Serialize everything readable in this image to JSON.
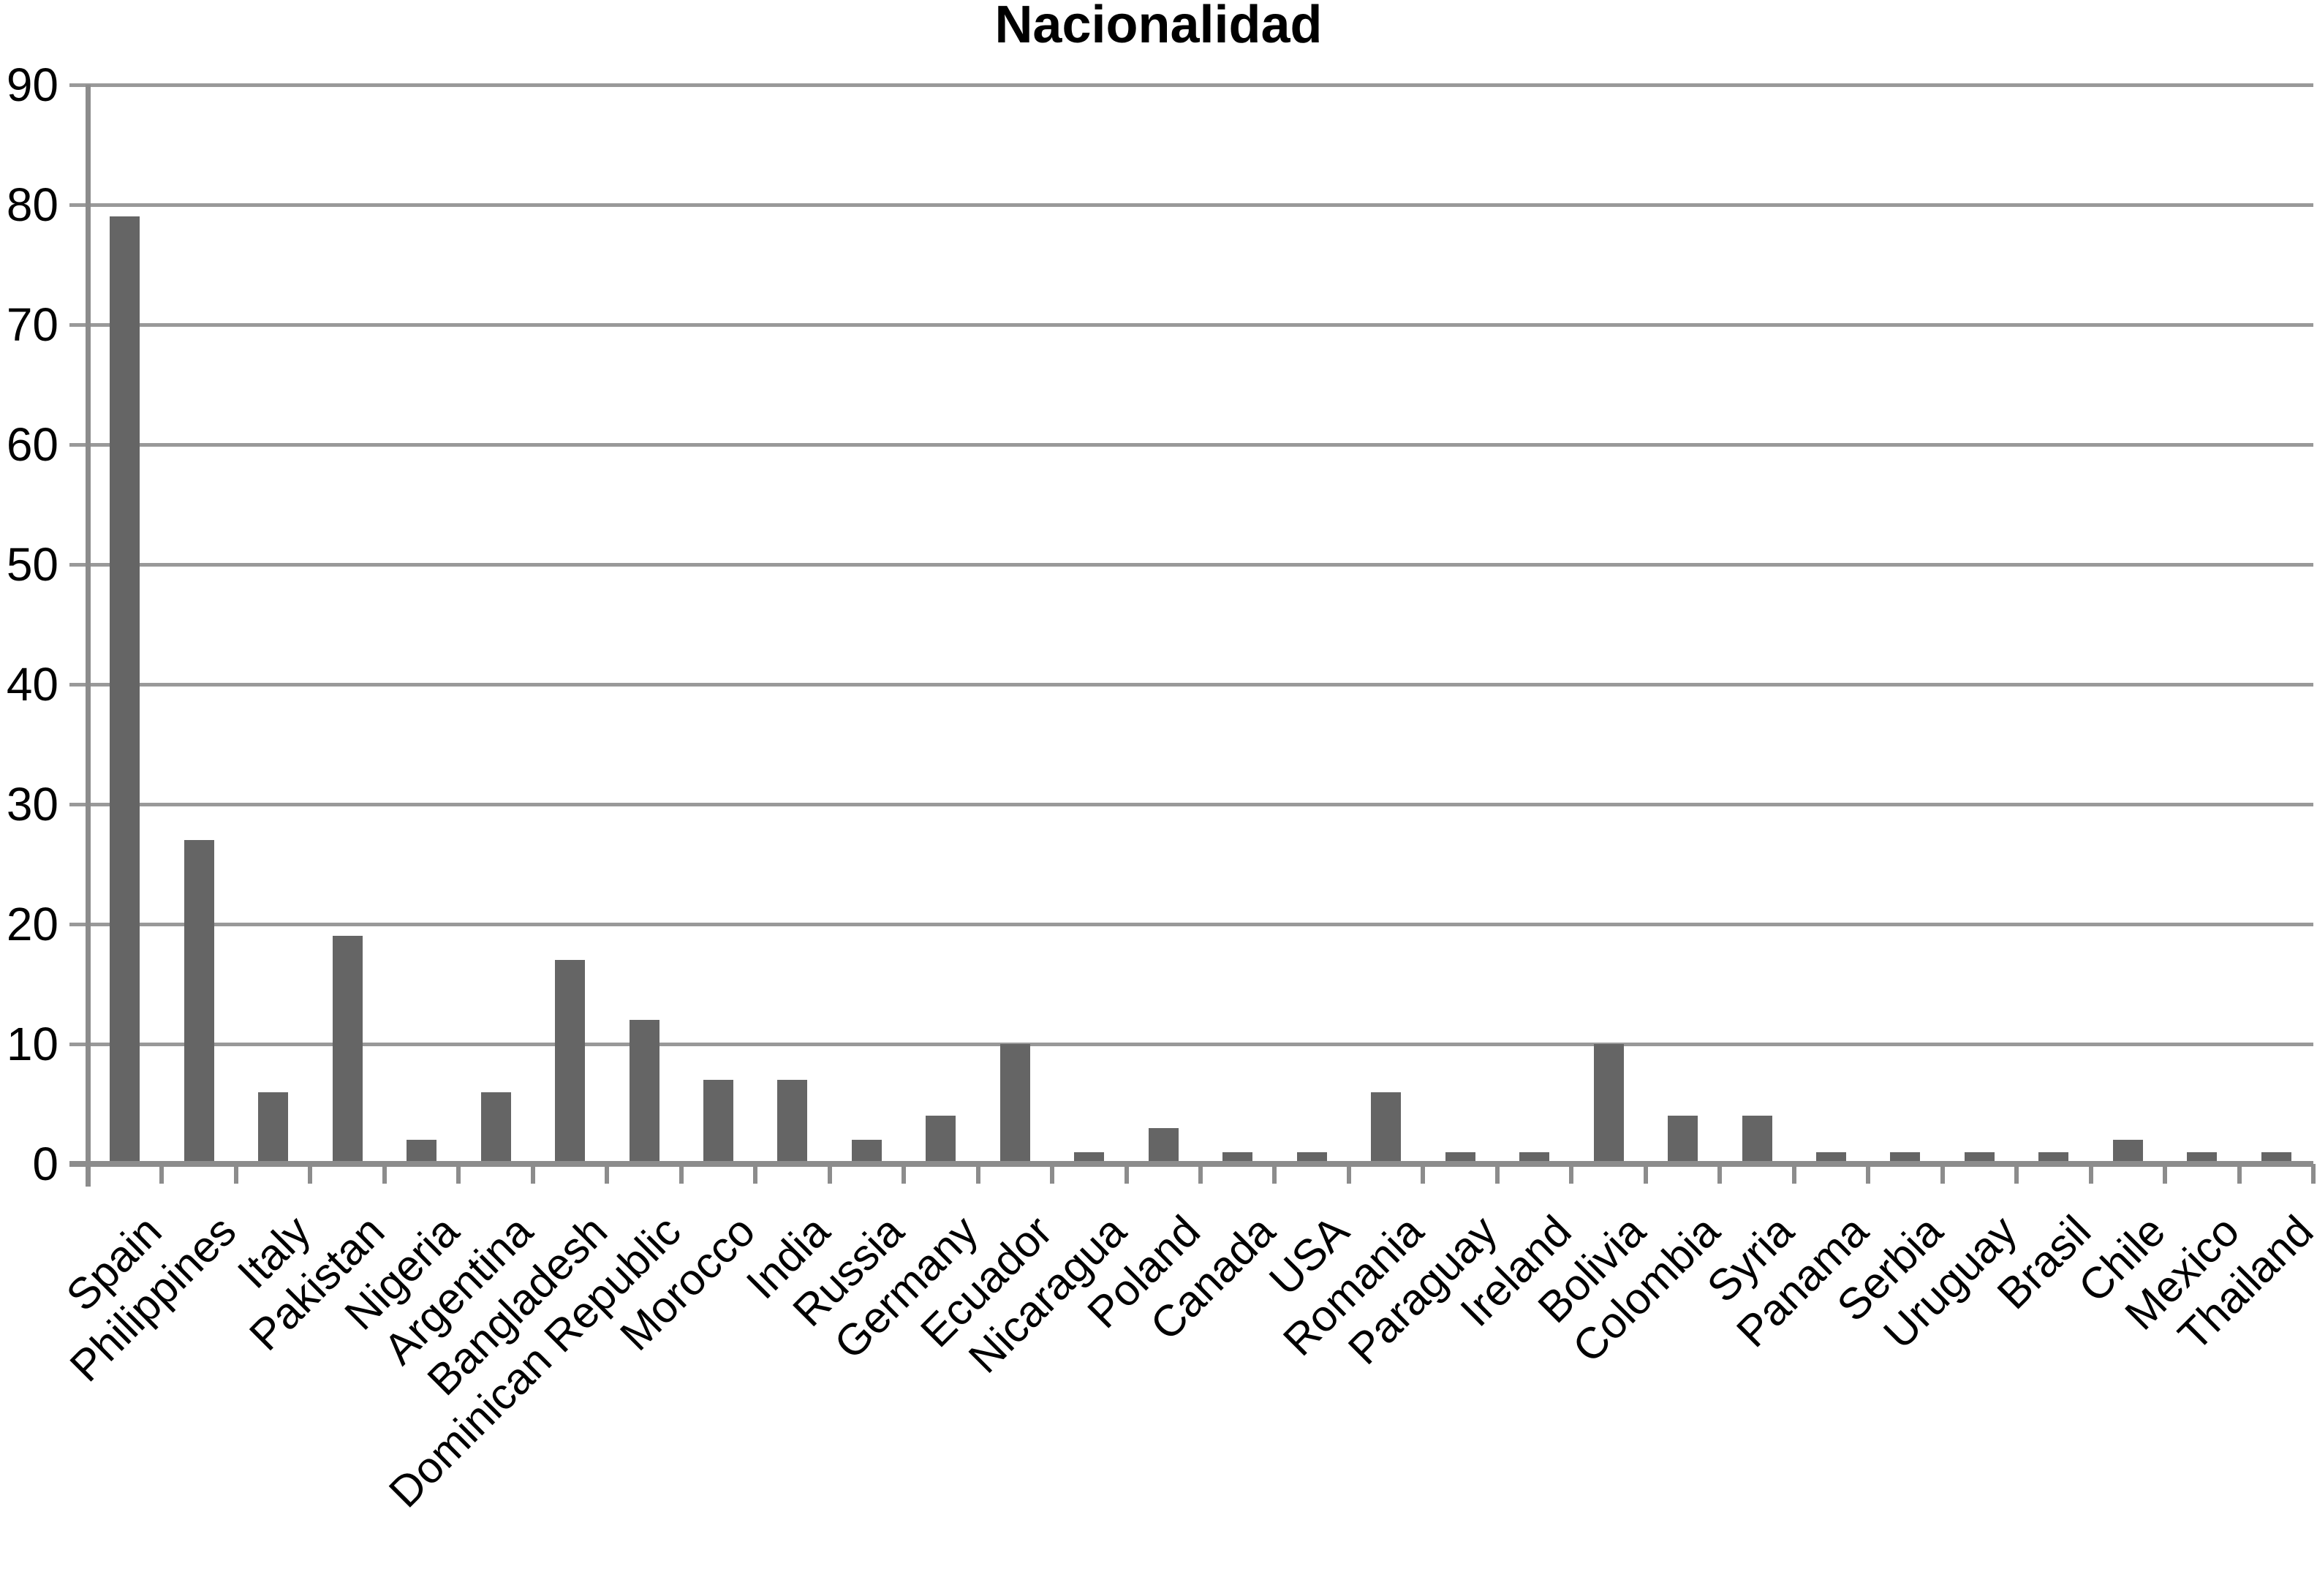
{
  "page": {
    "background": "#ffffff"
  },
  "chart_data": {
    "type": "bar",
    "title": "Nacionalidad",
    "categories": [
      "Spain",
      "Philippines",
      "Italy",
      "Pakistan",
      "Nigeria",
      "Argentina",
      "Bangladesh",
      "Dominican Republic",
      "Morocco",
      "India",
      "Russia",
      "Germany",
      "Ecuador",
      "Nicaragua",
      "Poland",
      "Canada",
      "USA",
      "Romania",
      "Paraguay",
      "Ireland",
      "Bolivia",
      "Colombia",
      "Syria",
      "Panama",
      "Serbia",
      "Uruguay",
      "Brasil",
      "Chile",
      "Mexico",
      "Thailand"
    ],
    "values": [
      79,
      27,
      6,
      19,
      2,
      6,
      17,
      12,
      7,
      7,
      2,
      4,
      10,
      1,
      3,
      1,
      1,
      6,
      1,
      1,
      10,
      4,
      4,
      1,
      1,
      1,
      1,
      2,
      1,
      1
    ],
    "yticks": [
      0,
      10,
      20,
      30,
      40,
      50,
      60,
      70,
      80,
      90
    ],
    "ylim": [
      0,
      90
    ],
    "xlabel": "",
    "ylabel": "",
    "grid": "horizontal",
    "legend": "none",
    "bar_color": "#656565",
    "grid_color": "#999999",
    "axis_color": "#8c8c8c",
    "text_color": "#000000"
  }
}
